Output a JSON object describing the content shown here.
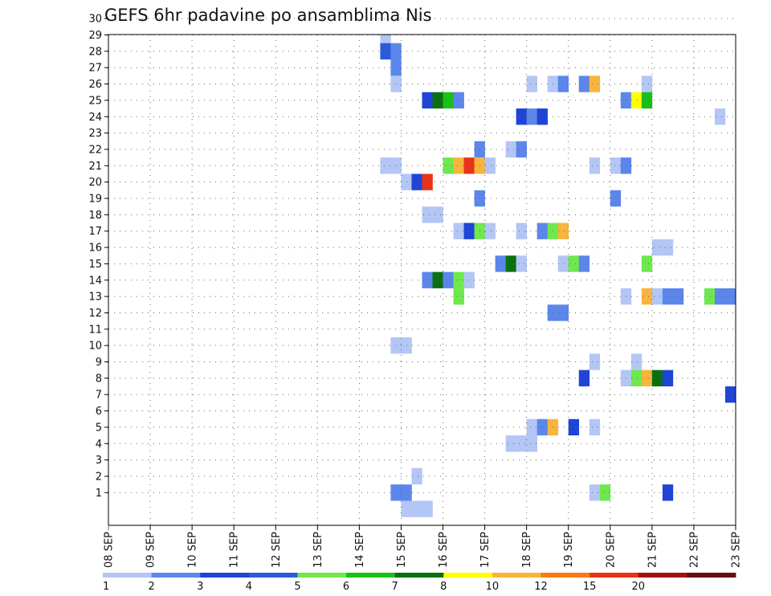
{
  "chart_data": {
    "type": "heatmap",
    "title": "GEFS 6hr padavine po ansamblima Nis",
    "x_unit": "6h step",
    "x_tick_labels": [
      "08 SEP",
      "09 SEP",
      "10 SEP",
      "11 SEP",
      "12 SEP",
      "13 SEP",
      "14 SEP",
      "15 SEP",
      "16 SEP",
      "17 SEP",
      "18 SEP",
      "19 SEP",
      "20 SEP",
      "21 SEP",
      "22 SEP",
      "23 SEP"
    ],
    "x_range": [
      0,
      60
    ],
    "y_tick_labels": [
      "1",
      "2",
      "3",
      "4",
      "5",
      "6",
      "7",
      "8",
      "9",
      "10",
      "11",
      "12",
      "13",
      "14",
      "15",
      "16",
      "17",
      "18",
      "19",
      "20",
      "21",
      "22",
      "23",
      "24",
      "25",
      "26",
      "27",
      "28",
      "29",
      "30"
    ],
    "y_range": [
      0,
      30
    ],
    "grid": true,
    "colorbar": {
      "labels": [
        "1",
        "2",
        "3",
        "4",
        "5",
        "6",
        "7",
        "8",
        "10",
        "12",
        "15",
        "20"
      ],
      "colors": [
        "#b3c6f5",
        "#5b86ec",
        "#1e45d6",
        "#2b5bd8",
        "#6ee84c",
        "#18c018",
        "#0a700f",
        "#ffff00",
        "#f8b43c",
        "#f77a14",
        "#e8331a",
        "#a01212",
        "#6a0c0c"
      ]
    },
    "cells": [
      {
        "x": 57,
        "y": 29,
        "v": 1
      },
      {
        "x": 58,
        "y": 29,
        "v": 1
      },
      {
        "x": 59,
        "y": 29,
        "v": 5
      },
      {
        "x": 35,
        "y": 29,
        "v": 1
      },
      {
        "x": 47,
        "y": 29.5,
        "v": 1
      },
      {
        "x": 48,
        "y": 29.5,
        "v": 3
      },
      {
        "x": 49,
        "y": 29.5,
        "v": 2
      },
      {
        "x": 26,
        "y": 28,
        "v": 1
      },
      {
        "x": 26,
        "y": 27,
        "v": 4
      },
      {
        "x": 27,
        "y": 27,
        "v": 2
      },
      {
        "x": 27,
        "y": 26,
        "v": 2
      },
      {
        "x": 27,
        "y": 25,
        "v": 1
      },
      {
        "x": 40,
        "y": 25,
        "v": 1
      },
      {
        "x": 42,
        "y": 25,
        "v": 1
      },
      {
        "x": 43,
        "y": 25,
        "v": 2
      },
      {
        "x": 45,
        "y": 25,
        "v": 2
      },
      {
        "x": 46,
        "y": 25,
        "v": 10
      },
      {
        "x": 51,
        "y": 25,
        "v": 1
      },
      {
        "x": 30,
        "y": 24,
        "v": 3
      },
      {
        "x": 31,
        "y": 24,
        "v": 7
      },
      {
        "x": 32,
        "y": 24,
        "v": 6
      },
      {
        "x": 33,
        "y": 24,
        "v": 2
      },
      {
        "x": 49,
        "y": 24,
        "v": 2
      },
      {
        "x": 50,
        "y": 24,
        "v": 8
      },
      {
        "x": 51,
        "y": 24,
        "v": 6
      },
      {
        "x": 39,
        "y": 23,
        "v": 3
      },
      {
        "x": 40,
        "y": 23,
        "v": 2
      },
      {
        "x": 41,
        "y": 23,
        "v": 3
      },
      {
        "x": 58,
        "y": 23,
        "v": 1
      },
      {
        "x": 35,
        "y": 21,
        "v": 2
      },
      {
        "x": 38,
        "y": 21,
        "v": 1
      },
      {
        "x": 39,
        "y": 21,
        "v": 2
      },
      {
        "x": 26,
        "y": 20,
        "v": 1
      },
      {
        "x": 27,
        "y": 20,
        "v": 1
      },
      {
        "x": 32,
        "y": 20,
        "v": 5
      },
      {
        "x": 33,
        "y": 20,
        "v": 10
      },
      {
        "x": 34,
        "y": 20,
        "v": 15
      },
      {
        "x": 35,
        "y": 20,
        "v": 10
      },
      {
        "x": 36,
        "y": 20,
        "v": 1
      },
      {
        "x": 46,
        "y": 20,
        "v": 1
      },
      {
        "x": 48,
        "y": 20,
        "v": 1
      },
      {
        "x": 49,
        "y": 20,
        "v": 2
      },
      {
        "x": 28,
        "y": 19,
        "v": 1
      },
      {
        "x": 29,
        "y": 19,
        "v": 3
      },
      {
        "x": 30,
        "y": 19,
        "v": 15
      },
      {
        "x": 35,
        "y": 18,
        "v": 2
      },
      {
        "x": 48,
        "y": 18,
        "v": 2
      },
      {
        "x": 30,
        "y": 17,
        "v": 1
      },
      {
        "x": 31,
        "y": 17,
        "v": 1
      },
      {
        "x": 33,
        "y": 16,
        "v": 1
      },
      {
        "x": 34,
        "y": 16,
        "v": 3
      },
      {
        "x": 35,
        "y": 16,
        "v": 5
      },
      {
        "x": 36,
        "y": 16,
        "v": 1
      },
      {
        "x": 39,
        "y": 16,
        "v": 1
      },
      {
        "x": 41,
        "y": 16,
        "v": 2
      },
      {
        "x": 42,
        "y": 16,
        "v": 5
      },
      {
        "x": 43,
        "y": 16,
        "v": 10
      },
      {
        "x": 52,
        "y": 15,
        "v": 1
      },
      {
        "x": 53,
        "y": 15,
        "v": 1
      },
      {
        "x": 37,
        "y": 14,
        "v": 2
      },
      {
        "x": 38,
        "y": 14,
        "v": 7
      },
      {
        "x": 39,
        "y": 14,
        "v": 1
      },
      {
        "x": 43,
        "y": 14,
        "v": 1
      },
      {
        "x": 44,
        "y": 14,
        "v": 5
      },
      {
        "x": 45,
        "y": 14,
        "v": 2
      },
      {
        "x": 51,
        "y": 14,
        "v": 5
      },
      {
        "x": 30,
        "y": 13,
        "v": 2
      },
      {
        "x": 31,
        "y": 13,
        "v": 7
      },
      {
        "x": 32,
        "y": 13,
        "v": 2
      },
      {
        "x": 33,
        "y": 13,
        "v": 5
      },
      {
        "x": 34,
        "y": 13,
        "v": 1
      },
      {
        "x": 49,
        "y": 12,
        "v": 1
      },
      {
        "x": 51,
        "y": 12,
        "v": 10
      },
      {
        "x": 52,
        "y": 12,
        "v": 1
      },
      {
        "x": 53,
        "y": 12,
        "v": 2
      },
      {
        "x": 54,
        "y": 12,
        "v": 2
      },
      {
        "x": 57,
        "y": 12,
        "v": 5
      },
      {
        "x": 58,
        "y": 12,
        "v": 2
      },
      {
        "x": 59,
        "y": 12,
        "v": 2
      },
      {
        "x": 33,
        "y": 12,
        "v": 5
      },
      {
        "x": 42,
        "y": 11,
        "v": 2
      },
      {
        "x": 43,
        "y": 11,
        "v": 2
      },
      {
        "x": 27,
        "y": 9,
        "v": 1
      },
      {
        "x": 28,
        "y": 9,
        "v": 1
      },
      {
        "x": 46,
        "y": 8,
        "v": 1
      },
      {
        "x": 50,
        "y": 8,
        "v": 1
      },
      {
        "x": 45,
        "y": 7,
        "v": 3
      },
      {
        "x": 49,
        "y": 7,
        "v": 1
      },
      {
        "x": 50,
        "y": 7,
        "v": 5
      },
      {
        "x": 51,
        "y": 7,
        "v": 10
      },
      {
        "x": 52,
        "y": 7,
        "v": 7
      },
      {
        "x": 53,
        "y": 7,
        "v": 3
      },
      {
        "x": 59,
        "y": 6,
        "v": 3
      },
      {
        "x": 40,
        "y": 4,
        "v": 1
      },
      {
        "x": 41,
        "y": 4,
        "v": 2
      },
      {
        "x": 42,
        "y": 4,
        "v": 10
      },
      {
        "x": 44,
        "y": 4,
        "v": 3
      },
      {
        "x": 46,
        "y": 4,
        "v": 1
      },
      {
        "x": 38,
        "y": 3,
        "v": 1
      },
      {
        "x": 39,
        "y": 3,
        "v": 1
      },
      {
        "x": 40,
        "y": 3,
        "v": 1
      },
      {
        "x": 29,
        "y": 1,
        "v": 1
      },
      {
        "x": 27,
        "y": 0,
        "v": 2
      },
      {
        "x": 28,
        "y": 0,
        "v": 2
      },
      {
        "x": 46,
        "y": 0,
        "v": 1
      },
      {
        "x": 47,
        "y": 0,
        "v": 5
      },
      {
        "x": 53,
        "y": 0,
        "v": 3
      },
      {
        "x": 28,
        "y": -1,
        "v": 1
      },
      {
        "x": 29,
        "y": -1,
        "v": 1
      },
      {
        "x": 30,
        "y": -1,
        "v": 1
      }
    ]
  }
}
